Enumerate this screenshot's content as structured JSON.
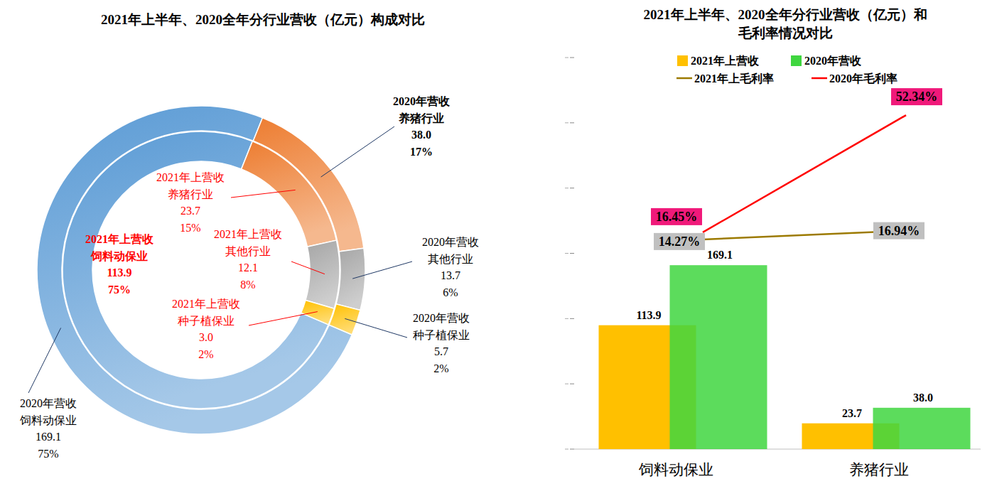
{
  "chart_data": [
    {
      "type": "pie",
      "title": "2021年上半年、2020全年分行业营收（亿元）构成对比",
      "categories": [
        "饲料动保业",
        "养猪行业",
        "其他行业",
        "种子植保业"
      ],
      "colors": [
        "#5b9bd5",
        "#ed7d31",
        "#a5a5a5",
        "#ffc000"
      ],
      "data_labels": true,
      "series": [
        {
          "name": "2020年营收",
          "values": [
            169.1,
            38.0,
            13.7,
            5.7
          ],
          "value_labels": [
            "169.1",
            "38.0",
            "13.7",
            "5.7"
          ],
          "percent_labels": [
            "75%",
            "17%",
            "6%",
            "2%"
          ]
        },
        {
          "name": "2021年上营收",
          "values": [
            113.9,
            23.7,
            12.1,
            3.0
          ],
          "value_labels": [
            "113.9",
            "23.7",
            "12.1",
            "3.0"
          ],
          "percent_labels": [
            "75%",
            "15%",
            "8%",
            "2%"
          ]
        }
      ]
    },
    {
      "type": "bar",
      "title": "2021年上半年、2020全年分行业营收（亿元）和\n毛利率情况对比",
      "categories": [
        "饲料动保业",
        "养猪行业"
      ],
      "legend": "top",
      "data_labels": true,
      "tick_labels": "x",
      "ylim": [
        0,
        360
      ],
      "yticks": [
        0,
        60,
        120,
        180,
        240,
        300,
        360
      ],
      "y2lim": [
        -50,
        70
      ],
      "y2ticks": [
        -50,
        -30,
        -10,
        10,
        30,
        50,
        70
      ],
      "series": [
        {
          "name": "2021年上营收",
          "type": "bar",
          "color": "#ffc000",
          "values": [
            113.9,
            23.7
          ],
          "value_labels": [
            "113.9",
            "23.7"
          ]
        },
        {
          "name": "2020年营收",
          "type": "bar",
          "color": "#3fd63f",
          "values": [
            169.1,
            38.0
          ],
          "value_labels": [
            "169.1",
            "38.0"
          ]
        },
        {
          "name": "2021年上毛利率",
          "type": "line",
          "axis": "y2",
          "color": "#9c7a00",
          "values": [
            14.27,
            16.94
          ],
          "value_labels": [
            "14.27%",
            "16.94%"
          ]
        },
        {
          "name": "2020年毛利率",
          "type": "line",
          "axis": "y2",
          "color": "#ff0000",
          "values": [
            16.45,
            52.34
          ],
          "value_labels": [
            "16.45%",
            "52.34%"
          ]
        }
      ]
    }
  ]
}
